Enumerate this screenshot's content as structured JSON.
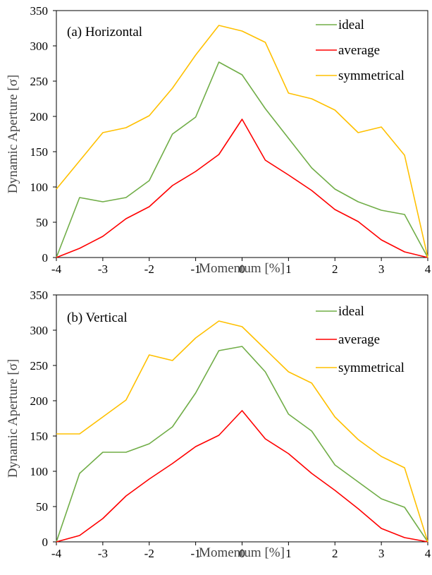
{
  "chart_data": [
    {
      "type": "line",
      "title": "(a) Horizontal",
      "xlabel": "Momentum [%]",
      "ylabel": "Dynamic Aperture [σ]",
      "xlim": [
        -4,
        4
      ],
      "ylim": [
        0,
        350
      ],
      "x_ticks": [
        "-4",
        "-3",
        "-2",
        "-1",
        "0",
        "1",
        "2",
        "3",
        "4"
      ],
      "y_ticks": [
        "0",
        "50",
        "100",
        "150",
        "200",
        "250",
        "300",
        "350"
      ],
      "legend_position": "top-right",
      "grid": false,
      "x": [
        -4,
        -3.5,
        -3,
        -2.5,
        -2,
        -1.5,
        -1,
        -0.5,
        0,
        0.5,
        1,
        1.5,
        2,
        2.5,
        3,
        3.5,
        4
      ],
      "series": [
        {
          "name": "ideal",
          "color": "#70ad47",
          "values": [
            0,
            85,
            79,
            85,
            109,
            175,
            199,
            277,
            259,
            211,
            169,
            127,
            97,
            79,
            67,
            61,
            0
          ]
        },
        {
          "name": "average",
          "color": "#ff0000",
          "values": [
            0,
            13,
            30,
            55,
            72,
            102,
            122,
            146,
            196,
            138,
            117,
            95,
            68,
            51,
            25,
            8,
            0
          ]
        },
        {
          "name": "symmetrical",
          "color": "#ffc000",
          "values": [
            97,
            137,
            177,
            184,
            201,
            240,
            287,
            329,
            321,
            305,
            233,
            225,
            209,
            177,
            185,
            145,
            0
          ]
        }
      ]
    },
    {
      "type": "line",
      "title": "(b) Vertical",
      "xlabel": "Momentum [%]",
      "ylabel": "Dynamic Aperture [σ]",
      "xlim": [
        -4,
        4
      ],
      "ylim": [
        0,
        350
      ],
      "x_ticks": [
        "-4",
        "-3",
        "-2",
        "-1",
        "0",
        "1",
        "2",
        "3",
        "4"
      ],
      "y_ticks": [
        "0",
        "50",
        "100",
        "150",
        "200",
        "250",
        "300",
        "350"
      ],
      "legend_position": "top-right",
      "grid": false,
      "x": [
        -4,
        -3.5,
        -3,
        -2.5,
        -2,
        -1.5,
        -1,
        -0.5,
        0,
        0.5,
        1,
        1.5,
        2,
        2.5,
        3,
        3.5,
        4
      ],
      "series": [
        {
          "name": "ideal",
          "color": "#70ad47",
          "values": [
            0,
            97,
            127,
            127,
            139,
            163,
            211,
            271,
            277,
            241,
            181,
            157,
            109,
            85,
            61,
            49,
            0
          ]
        },
        {
          "name": "average",
          "color": "#ff0000",
          "values": [
            0,
            9,
            33,
            65,
            89,
            111,
            135,
            151,
            186,
            146,
            125,
            97,
            73,
            47,
            19,
            6,
            0
          ]
        },
        {
          "name": "symmetrical",
          "color": "#ffc000",
          "values": [
            153,
            153,
            177,
            201,
            265,
            257,
            289,
            313,
            305,
            273,
            241,
            225,
            177,
            145,
            121,
            105,
            0
          ]
        }
      ]
    }
  ]
}
